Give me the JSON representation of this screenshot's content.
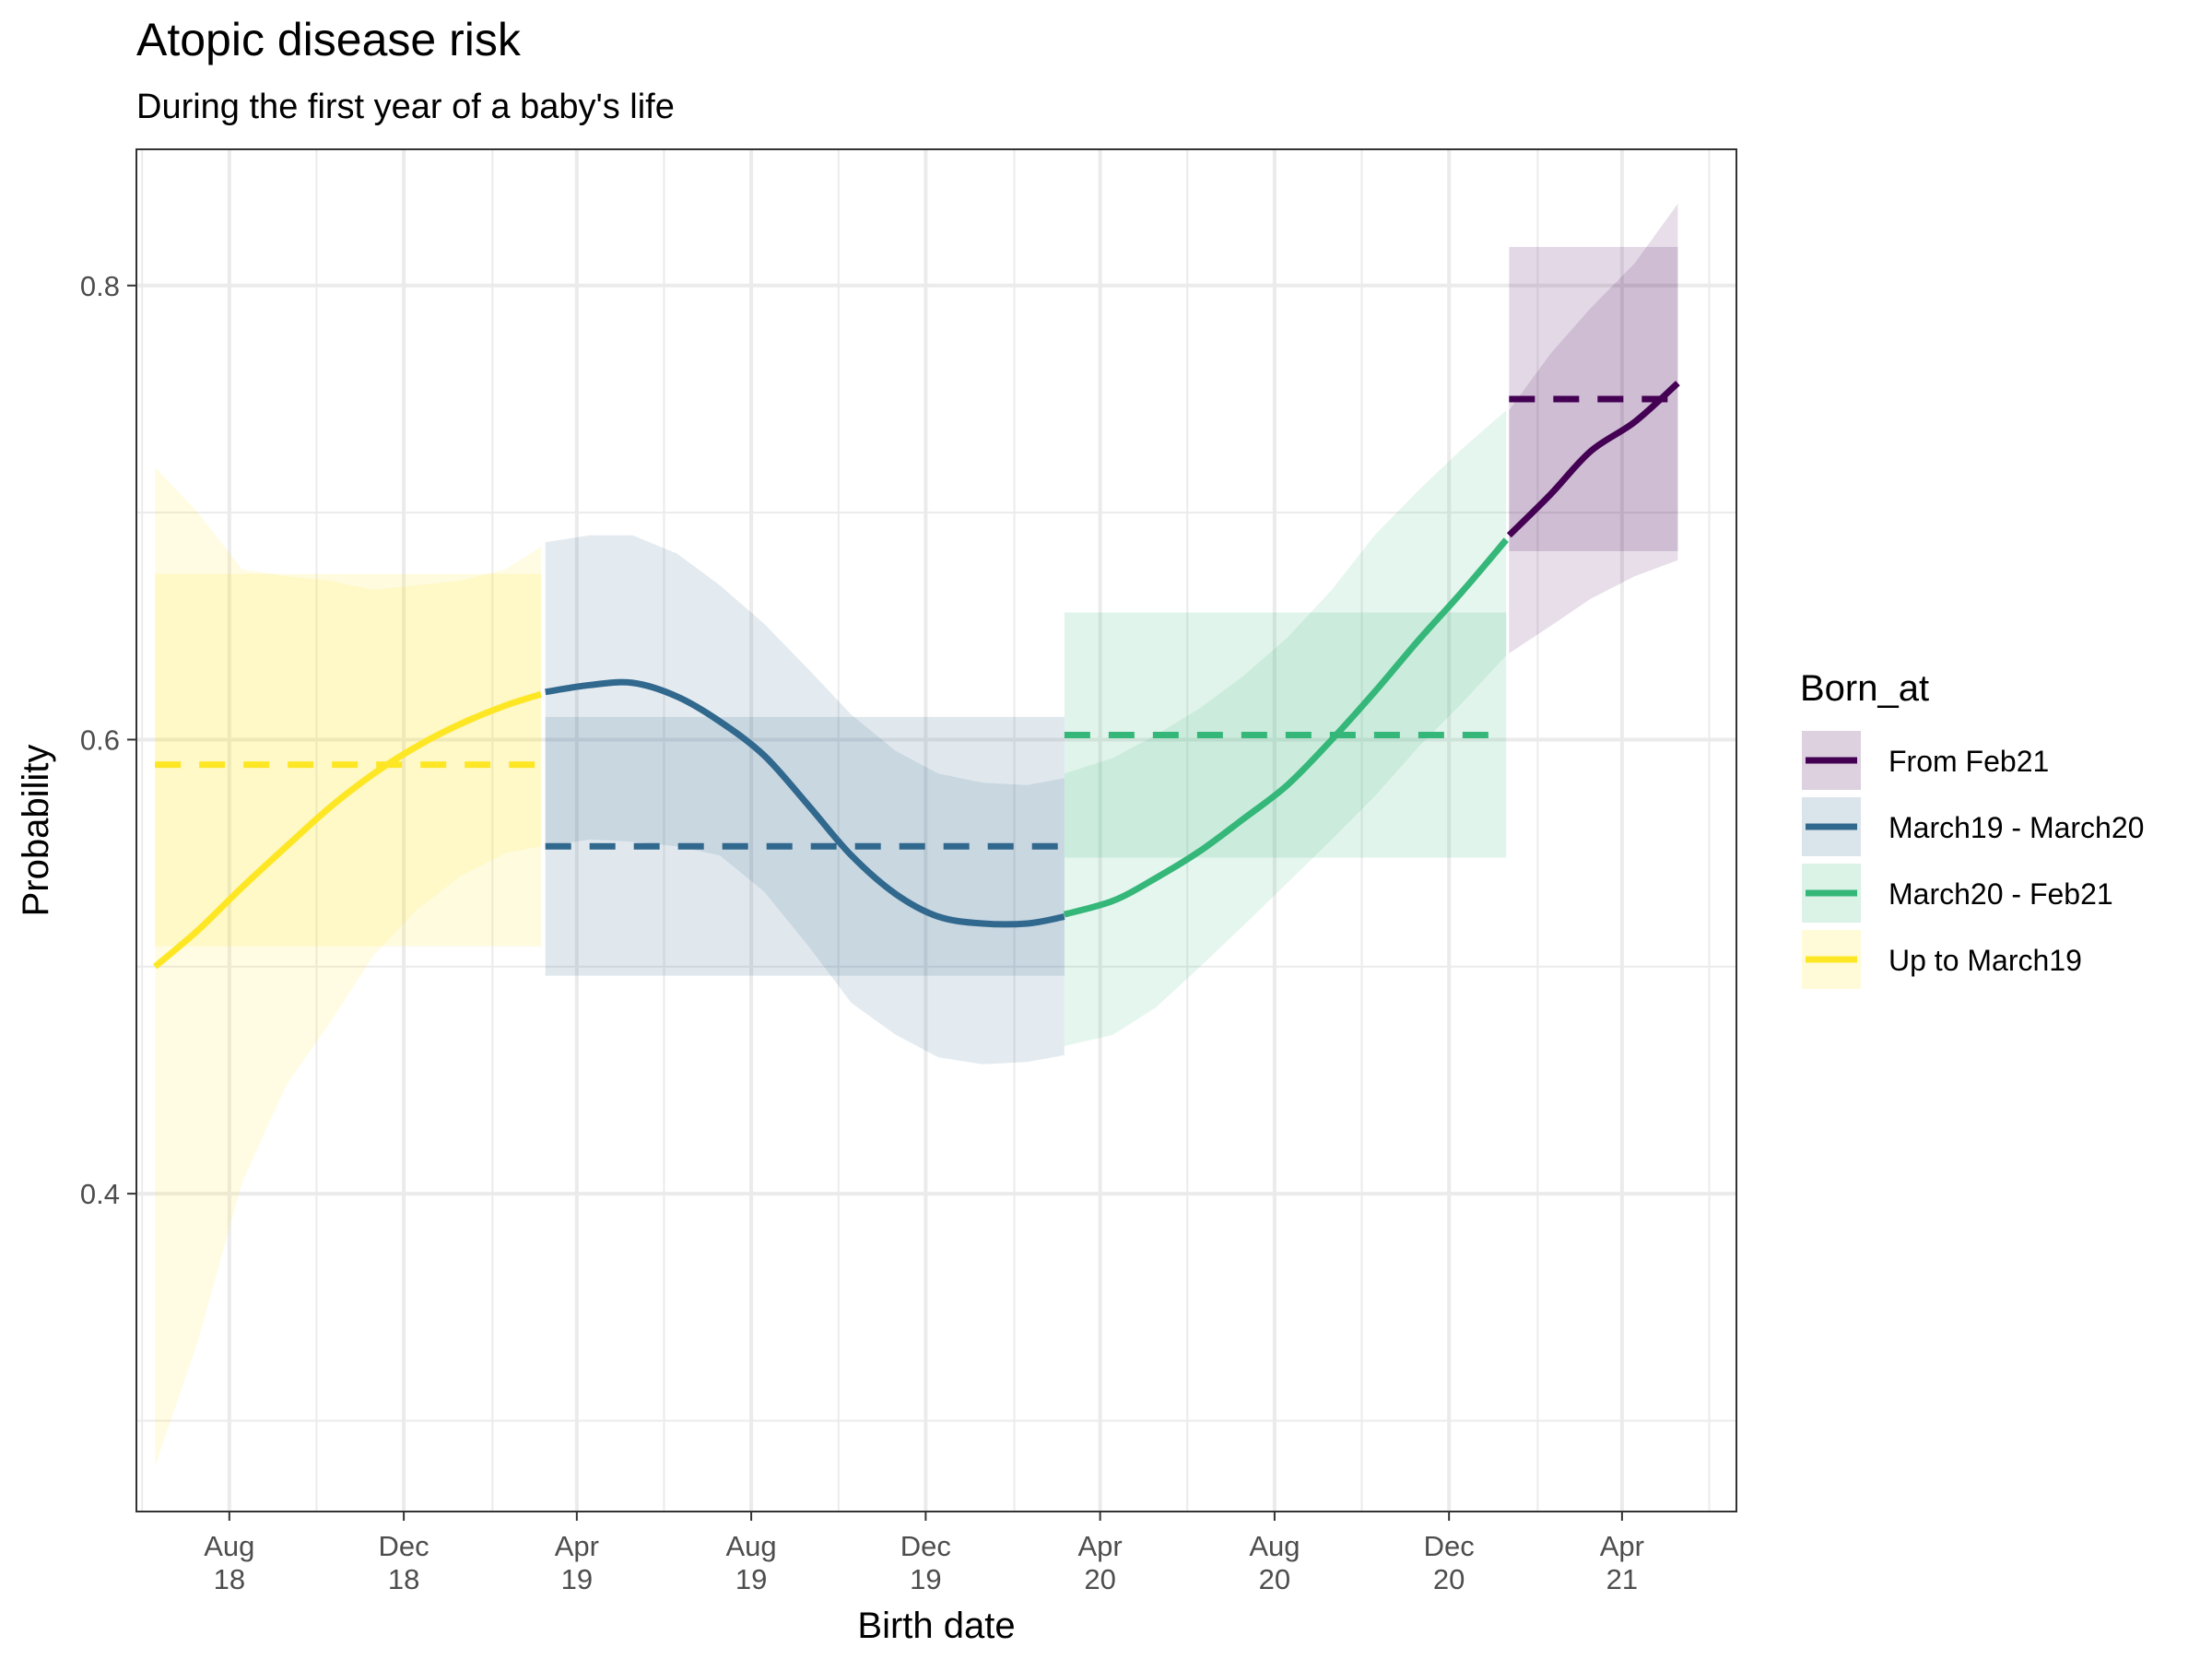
{
  "chart_data": {
    "type": "line",
    "title": "Atopic disease risk",
    "subtitle": "During the first year of a baby's life",
    "xlabel": "Birth date",
    "ylabel": "Probability",
    "x_domain": [
      "2018-05-28",
      "2021-06-20"
    ],
    "ylim": [
      0.26,
      0.86
    ],
    "y_ticks": [
      0.4,
      0.6,
      0.8
    ],
    "x_ticks": [
      {
        "date": "2018-08-01",
        "label": [
          "Aug",
          "18"
        ]
      },
      {
        "date": "2018-12-01",
        "label": [
          "Dec",
          "18"
        ]
      },
      {
        "date": "2019-04-01",
        "label": [
          "Apr",
          "19"
        ]
      },
      {
        "date": "2019-08-01",
        "label": [
          "Aug",
          "19"
        ]
      },
      {
        "date": "2019-12-01",
        "label": [
          "Dec",
          "19"
        ]
      },
      {
        "date": "2020-04-01",
        "label": [
          "Apr",
          "20"
        ]
      },
      {
        "date": "2020-08-01",
        "label": [
          "Aug",
          "20"
        ]
      },
      {
        "date": "2020-12-01",
        "label": [
          "Dec",
          "20"
        ]
      },
      {
        "date": "2021-04-01",
        "label": [
          "Apr",
          "21"
        ]
      }
    ],
    "x_minor_ticks": [
      "2018-06-01",
      "2018-10-01",
      "2019-02-01",
      "2019-06-01",
      "2019-10-01",
      "2020-02-01",
      "2020-06-01",
      "2020-10-01",
      "2021-02-01",
      "2021-06-01"
    ],
    "grid": true,
    "legend_position": "right",
    "legend_title": "Born_at",
    "legend_order": [
      "From Feb21",
      "March19 - March20",
      "March20 - Feb21",
      "Up to March19"
    ],
    "series": [
      {
        "name": "Up to March19",
        "color": "#FDE725",
        "mean": 0.589,
        "mean_ci": [
          0.509,
          0.673
        ],
        "curve": [
          {
            "x": "2018-06-10",
            "y": 0.5
          },
          {
            "x": "2018-07-10",
            "y": 0.516
          },
          {
            "x": "2018-08-10",
            "y": 0.535
          },
          {
            "x": "2018-09-10",
            "y": 0.553
          },
          {
            "x": "2018-10-10",
            "y": 0.57
          },
          {
            "x": "2018-11-10",
            "y": 0.585
          },
          {
            "x": "2018-12-10",
            "y": 0.597
          },
          {
            "x": "2019-01-10",
            "y": 0.607
          },
          {
            "x": "2019-02-10",
            "y": 0.615
          },
          {
            "x": "2019-03-07",
            "y": 0.62
          }
        ],
        "band": [
          {
            "x": "2018-06-10",
            "lo": 0.28,
            "hi": 0.72
          },
          {
            "x": "2018-07-10",
            "lo": 0.335,
            "hi": 0.7
          },
          {
            "x": "2018-08-10",
            "lo": 0.405,
            "hi": 0.675
          },
          {
            "x": "2018-09-10",
            "lo": 0.448,
            "hi": 0.672
          },
          {
            "x": "2018-10-10",
            "lo": 0.475,
            "hi": 0.67
          },
          {
            "x": "2018-11-10",
            "lo": 0.505,
            "hi": 0.666
          },
          {
            "x": "2018-12-10",
            "lo": 0.525,
            "hi": 0.668
          },
          {
            "x": "2019-01-10",
            "lo": 0.54,
            "hi": 0.67
          },
          {
            "x": "2019-02-10",
            "lo": 0.55,
            "hi": 0.675
          },
          {
            "x": "2019-03-07",
            "lo": 0.553,
            "hi": 0.685
          }
        ]
      },
      {
        "name": "March19 - March20",
        "color": "#31688E",
        "mean": 0.553,
        "mean_ci": [
          0.496,
          0.61
        ],
        "curve": [
          {
            "x": "2019-03-10",
            "y": 0.621
          },
          {
            "x": "2019-04-10",
            "y": 0.624
          },
          {
            "x": "2019-05-10",
            "y": 0.625
          },
          {
            "x": "2019-06-10",
            "y": 0.619
          },
          {
            "x": "2019-07-10",
            "y": 0.608
          },
          {
            "x": "2019-08-10",
            "y": 0.593
          },
          {
            "x": "2019-09-10",
            "y": 0.571
          },
          {
            "x": "2019-10-10",
            "y": 0.549
          },
          {
            "x": "2019-11-10",
            "y": 0.532
          },
          {
            "x": "2019-12-10",
            "y": 0.522
          },
          {
            "x": "2020-01-10",
            "y": 0.519
          },
          {
            "x": "2020-02-10",
            "y": 0.519
          },
          {
            "x": "2020-03-07",
            "y": 0.522
          }
        ],
        "band": [
          {
            "x": "2019-03-10",
            "lo": 0.553,
            "hi": 0.687
          },
          {
            "x": "2019-04-10",
            "lo": 0.556,
            "hi": 0.69
          },
          {
            "x": "2019-05-10",
            "lo": 0.555,
            "hi": 0.69
          },
          {
            "x": "2019-06-10",
            "lo": 0.553,
            "hi": 0.682
          },
          {
            "x": "2019-07-10",
            "lo": 0.549,
            "hi": 0.668
          },
          {
            "x": "2019-08-10",
            "lo": 0.533,
            "hi": 0.651
          },
          {
            "x": "2019-09-10",
            "lo": 0.509,
            "hi": 0.631
          },
          {
            "x": "2019-10-10",
            "lo": 0.484,
            "hi": 0.611
          },
          {
            "x": "2019-11-10",
            "lo": 0.47,
            "hi": 0.595
          },
          {
            "x": "2019-12-10",
            "lo": 0.46,
            "hi": 0.585
          },
          {
            "x": "2020-01-10",
            "lo": 0.457,
            "hi": 0.581
          },
          {
            "x": "2020-02-10",
            "lo": 0.458,
            "hi": 0.58
          },
          {
            "x": "2020-03-07",
            "lo": 0.461,
            "hi": 0.583
          }
        ]
      },
      {
        "name": "March20 - Feb21",
        "color": "#35B779",
        "mean": 0.602,
        "mean_ci": [
          0.548,
          0.656
        ],
        "curve": [
          {
            "x": "2020-03-07",
            "y": 0.523
          },
          {
            "x": "2020-04-10",
            "y": 0.529
          },
          {
            "x": "2020-05-10",
            "y": 0.539
          },
          {
            "x": "2020-06-10",
            "y": 0.551
          },
          {
            "x": "2020-07-10",
            "y": 0.565
          },
          {
            "x": "2020-08-10",
            "y": 0.58
          },
          {
            "x": "2020-09-10",
            "y": 0.6
          },
          {
            "x": "2020-10-10",
            "y": 0.621
          },
          {
            "x": "2020-11-10",
            "y": 0.644
          },
          {
            "x": "2020-12-10",
            "y": 0.665
          },
          {
            "x": "2021-01-10",
            "y": 0.688
          }
        ],
        "band": [
          {
            "x": "2020-03-07",
            "lo": 0.465,
            "hi": 0.585
          },
          {
            "x": "2020-04-10",
            "lo": 0.47,
            "hi": 0.592
          },
          {
            "x": "2020-05-10",
            "lo": 0.482,
            "hi": 0.602
          },
          {
            "x": "2020-06-10",
            "lo": 0.5,
            "hi": 0.614
          },
          {
            "x": "2020-07-10",
            "lo": 0.518,
            "hi": 0.628
          },
          {
            "x": "2020-08-10",
            "lo": 0.537,
            "hi": 0.645
          },
          {
            "x": "2020-09-10",
            "lo": 0.556,
            "hi": 0.666
          },
          {
            "x": "2020-10-10",
            "lo": 0.575,
            "hi": 0.69
          },
          {
            "x": "2020-11-10",
            "lo": 0.597,
            "hi": 0.71
          },
          {
            "x": "2020-12-10",
            "lo": 0.616,
            "hi": 0.728
          },
          {
            "x": "2021-01-10",
            "lo": 0.637,
            "hi": 0.745
          }
        ]
      },
      {
        "name": "From Feb21",
        "color": "#440154",
        "mean": 0.75,
        "mean_ci": [
          0.683,
          0.817
        ],
        "curve": [
          {
            "x": "2021-01-12",
            "y": 0.69
          },
          {
            "x": "2021-02-10",
            "y": 0.708
          },
          {
            "x": "2021-03-10",
            "y": 0.727
          },
          {
            "x": "2021-04-10",
            "y": 0.74
          },
          {
            "x": "2021-05-10",
            "y": 0.757
          }
        ],
        "band": [
          {
            "x": "2021-01-12",
            "lo": 0.638,
            "hi": 0.745
          },
          {
            "x": "2021-02-10",
            "lo": 0.65,
            "hi": 0.77
          },
          {
            "x": "2021-03-10",
            "lo": 0.662,
            "hi": 0.79
          },
          {
            "x": "2021-04-10",
            "lo": 0.672,
            "hi": 0.81
          },
          {
            "x": "2021-05-10",
            "lo": 0.679,
            "hi": 0.836
          }
        ]
      }
    ]
  }
}
